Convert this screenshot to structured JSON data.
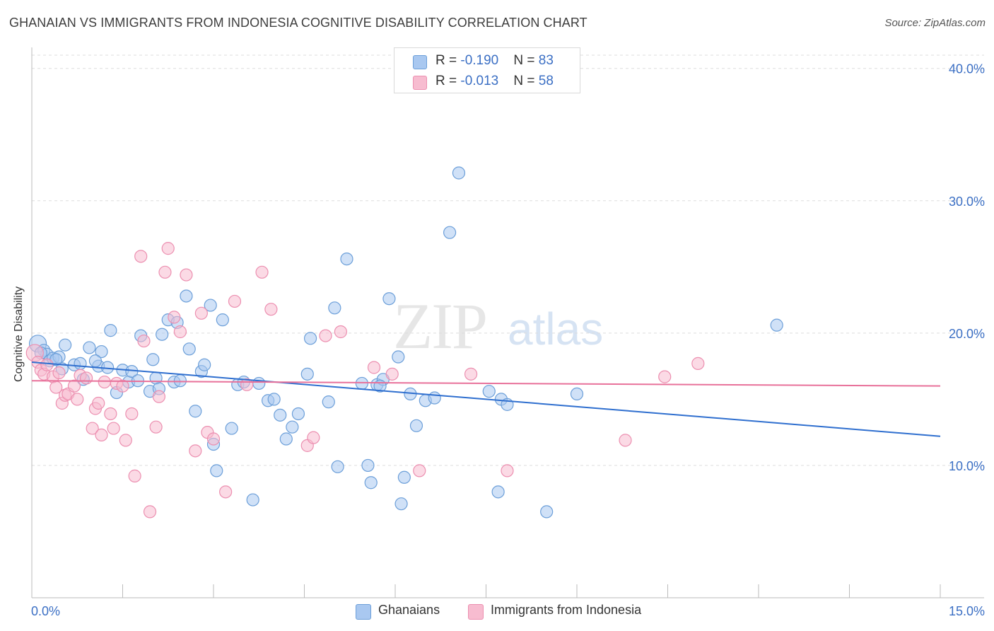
{
  "header": {
    "title": "GHANAIAN VS IMMIGRANTS FROM INDONESIA COGNITIVE DISABILITY CORRELATION CHART",
    "source": "Source: ZipAtlas.com"
  },
  "watermark": {
    "zip": "ZIP",
    "atlas": "atlas"
  },
  "legend": {
    "rows": [
      {
        "r_label": "R = ",
        "r_value": "-0.190",
        "n_label": "N = ",
        "n_value": "83",
        "color": "#a9c8f0"
      },
      {
        "r_label": "R = ",
        "r_value": "-0.013",
        "n_label": "N = ",
        "n_value": "58",
        "color": "#f7bcd0"
      }
    ]
  },
  "bottom_legend": {
    "ghanaians": "Ghanaians",
    "indonesia": "Immigrants from Indonesia"
  },
  "colors": {
    "blue_fill": "#a9c8f0",
    "blue_stroke": "#6c9fd9",
    "blue_line": "#2f6fcf",
    "pink_fill": "#f7bcd0",
    "pink_stroke": "#ec8fb0",
    "pink_line": "#e8719a",
    "axis_label": "#3b6fc4",
    "grid": "#dddddd"
  },
  "chart_data": {
    "type": "scatter",
    "title": "GHANAIAN VS IMMIGRANTS FROM INDONESIA COGNITIVE DISABILITY CORRELATION CHART",
    "xlabel": "",
    "ylabel": "Cognitive Disability",
    "xlim": [
      0,
      15
    ],
    "ylim": [
      0,
      40
    ],
    "x_tick_labels": [
      "0.0%",
      "15.0%"
    ],
    "y_ticks": [
      10,
      20,
      30,
      40
    ],
    "y_tick_labels": [
      "10.0%",
      "20.0%",
      "30.0%",
      "40.0%"
    ],
    "grid": "horizontal dashed",
    "legend_position": "top-center",
    "series": [
      {
        "name": "Ghanaians",
        "r": -0.19,
        "n": 83,
        "trend": {
          "x": [
            0,
            15
          ],
          "y": [
            17.8,
            12.2
          ]
        },
        "points": [
          [
            0.1,
            19.2
          ],
          [
            0.2,
            18.7
          ],
          [
            0.25,
            18.4
          ],
          [
            0.3,
            17.9
          ],
          [
            0.35,
            18.1
          ],
          [
            0.45,
            18.2
          ],
          [
            0.5,
            17.3
          ],
          [
            0.55,
            19.1
          ],
          [
            0.7,
            17.6
          ],
          [
            0.8,
            17.7
          ],
          [
            0.85,
            16.5
          ],
          [
            0.95,
            18.9
          ],
          [
            1.1,
            17.5
          ],
          [
            1.15,
            18.6
          ],
          [
            1.25,
            17.4
          ],
          [
            1.3,
            20.2
          ],
          [
            1.4,
            15.5
          ],
          [
            1.5,
            17.2
          ],
          [
            1.6,
            16.3
          ],
          [
            1.65,
            17.1
          ],
          [
            1.75,
            16.4
          ],
          [
            1.8,
            19.8
          ],
          [
            1.95,
            15.6
          ],
          [
            2.0,
            18.0
          ],
          [
            2.05,
            16.6
          ],
          [
            2.1,
            15.8
          ],
          [
            2.15,
            19.9
          ],
          [
            2.25,
            21.0
          ],
          [
            2.35,
            16.3
          ],
          [
            2.4,
            20.8
          ],
          [
            2.55,
            22.8
          ],
          [
            2.6,
            18.8
          ],
          [
            2.7,
            14.1
          ],
          [
            2.8,
            17.1
          ],
          [
            2.85,
            17.6
          ],
          [
            2.95,
            22.1
          ],
          [
            3.0,
            11.6
          ],
          [
            3.05,
            9.6
          ],
          [
            3.15,
            21.0
          ],
          [
            3.3,
            12.8
          ],
          [
            3.4,
            16.1
          ],
          [
            3.5,
            16.3
          ],
          [
            3.65,
            7.4
          ],
          [
            3.9,
            14.9
          ],
          [
            4.0,
            15.0
          ],
          [
            4.1,
            13.8
          ],
          [
            4.2,
            12.0
          ],
          [
            4.3,
            12.9
          ],
          [
            4.4,
            13.9
          ],
          [
            4.55,
            16.9
          ],
          [
            4.6,
            19.6
          ],
          [
            4.9,
            14.8
          ],
          [
            5.0,
            21.9
          ],
          [
            5.05,
            9.9
          ],
          [
            5.2,
            25.6
          ],
          [
            5.45,
            16.2
          ],
          [
            5.55,
            10.0
          ],
          [
            5.6,
            8.7
          ],
          [
            5.7,
            16.1
          ],
          [
            5.8,
            16.5
          ],
          [
            5.9,
            22.6
          ],
          [
            6.05,
            18.2
          ],
          [
            6.1,
            7.1
          ],
          [
            6.15,
            9.1
          ],
          [
            6.25,
            15.4
          ],
          [
            6.35,
            13.0
          ],
          [
            6.5,
            14.9
          ],
          [
            6.65,
            15.1
          ],
          [
            6.9,
            27.6
          ],
          [
            7.05,
            32.1
          ],
          [
            7.55,
            15.6
          ],
          [
            7.7,
            8.0
          ],
          [
            7.75,
            15.0
          ],
          [
            7.85,
            14.6
          ],
          [
            8.5,
            6.5
          ],
          [
            9.0,
            15.4
          ],
          [
            12.3,
            20.6
          ],
          [
            0.15,
            18.5
          ],
          [
            0.4,
            18.0
          ],
          [
            1.05,
            17.9
          ],
          [
            2.45,
            16.4
          ],
          [
            3.75,
            16.2
          ],
          [
            5.75,
            16.0
          ]
        ]
      },
      {
        "name": "Immigrants from Indonesia",
        "r": -0.013,
        "n": 58,
        "trend": {
          "x": [
            0,
            15
          ],
          "y": [
            16.4,
            16.0
          ]
        },
        "points": [
          [
            0.05,
            18.5
          ],
          [
            0.1,
            17.8
          ],
          [
            0.15,
            17.2
          ],
          [
            0.2,
            16.9
          ],
          [
            0.25,
            17.6
          ],
          [
            0.35,
            16.7
          ],
          [
            0.4,
            15.9
          ],
          [
            0.45,
            17.0
          ],
          [
            0.5,
            14.7
          ],
          [
            0.55,
            15.3
          ],
          [
            0.6,
            15.4
          ],
          [
            0.7,
            16.0
          ],
          [
            0.75,
            15.0
          ],
          [
            0.8,
            16.8
          ],
          [
            0.9,
            16.6
          ],
          [
            1.0,
            12.8
          ],
          [
            1.05,
            14.3
          ],
          [
            1.1,
            14.7
          ],
          [
            1.15,
            12.3
          ],
          [
            1.2,
            16.3
          ],
          [
            1.3,
            13.9
          ],
          [
            1.35,
            12.8
          ],
          [
            1.4,
            16.2
          ],
          [
            1.5,
            16.0
          ],
          [
            1.55,
            11.9
          ],
          [
            1.65,
            13.9
          ],
          [
            1.7,
            9.2
          ],
          [
            1.8,
            25.8
          ],
          [
            1.85,
            19.4
          ],
          [
            1.95,
            6.5
          ],
          [
            2.05,
            12.9
          ],
          [
            2.1,
            15.2
          ],
          [
            2.2,
            24.6
          ],
          [
            2.25,
            26.4
          ],
          [
            2.35,
            21.2
          ],
          [
            2.45,
            20.1
          ],
          [
            2.55,
            24.4
          ],
          [
            2.7,
            11.1
          ],
          [
            2.8,
            21.5
          ],
          [
            2.9,
            12.5
          ],
          [
            3.0,
            12.0
          ],
          [
            3.2,
            8.0
          ],
          [
            3.35,
            22.4
          ],
          [
            3.55,
            16.1
          ],
          [
            3.8,
            24.6
          ],
          [
            3.95,
            21.8
          ],
          [
            4.55,
            11.5
          ],
          [
            4.65,
            12.1
          ],
          [
            4.85,
            19.8
          ],
          [
            5.1,
            20.1
          ],
          [
            5.65,
            17.4
          ],
          [
            5.95,
            16.9
          ],
          [
            6.4,
            9.6
          ],
          [
            7.25,
            16.9
          ],
          [
            7.85,
            9.6
          ],
          [
            9.8,
            11.9
          ],
          [
            10.45,
            16.7
          ],
          [
            11.0,
            17.7
          ]
        ]
      }
    ]
  }
}
